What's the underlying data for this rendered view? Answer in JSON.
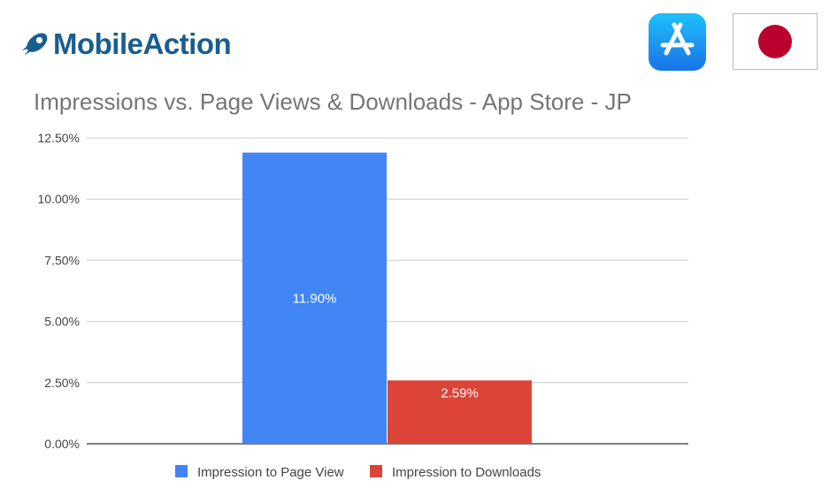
{
  "brand": {
    "name": "MobileAction",
    "primary_color": "#1a5d8f"
  },
  "badges": {
    "store_icon": "app-store-icon",
    "store_color": "#1e88f0",
    "flag_icon": "japan-flag-icon",
    "flag_color": "#bc002d"
  },
  "chart_data": {
    "type": "bar",
    "title": "Impressions vs. Page Views & Downloads - App Store - JP",
    "xlabel": "",
    "ylabel": "",
    "ylim": [
      0,
      12.5
    ],
    "yticks": [
      "0.00%",
      "2.50%",
      "5.00%",
      "7.50%",
      "10.00%",
      "12.50%"
    ],
    "ytick_values": [
      0,
      2.5,
      5,
      7.5,
      10,
      12.5
    ],
    "grid": true,
    "legend_position": "bottom",
    "series": [
      {
        "name": "Impression to Page View",
        "value": 11.9,
        "label": "11.90%",
        "color": "#4285f4"
      },
      {
        "name": "Impression to Downloads",
        "value": 2.59,
        "label": "2.59%",
        "color": "#db4437"
      }
    ]
  }
}
